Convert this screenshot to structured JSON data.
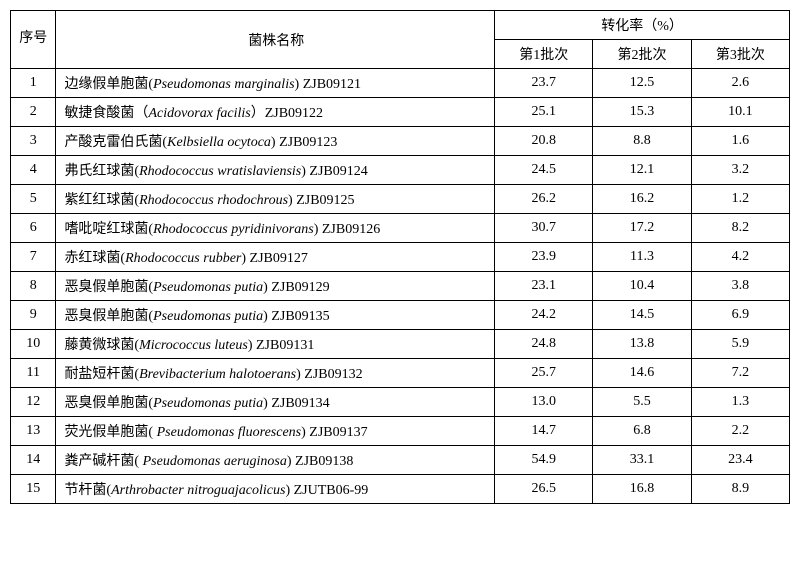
{
  "headers": {
    "seq": "序号",
    "name": "菌株名称",
    "rate": "转化率（%）",
    "batch1": "第1批次",
    "batch2": "第2批次",
    "batch3": "第3批次"
  },
  "rows": [
    {
      "seq": "1",
      "cn": "边缘假单胞菌",
      "latin": "Pseudomonas marginalis",
      "code": " ZJB09121",
      "b1": "23.7",
      "b2": "12.5",
      "b3": "2.6"
    },
    {
      "seq": "2",
      "cn": "敏捷食酸菌（",
      "latin": "Acidovorax facilis",
      "code": "）ZJB09122",
      "b1": "25.1",
      "b2": "15.3",
      "b3": "10.1",
      "paren": true
    },
    {
      "seq": "3",
      "cn": "产酸克雷伯氏菌",
      "latin": "Kelbsiella ocytoca",
      "code": " ZJB09123",
      "b1": "20.8",
      "b2": "8.8",
      "b3": "1.6"
    },
    {
      "seq": "4",
      "cn": "弗氏红球菌",
      "latin": "Rhodococcus wratislaviensis",
      "code": " ZJB09124",
      "b1": "24.5",
      "b2": "12.1",
      "b3": "3.2"
    },
    {
      "seq": "5",
      "cn": "紫红红球菌",
      "latin": "Rhodococcus rhodochrous",
      "code": " ZJB09125",
      "b1": "26.2",
      "b2": "16.2",
      "b3": "1.2"
    },
    {
      "seq": "6",
      "cn": "嗜吡啶红球菌",
      "latin": "Rhodococcus pyridinivorans",
      "code": " ZJB09126",
      "b1": "30.7",
      "b2": "17.2",
      "b3": "8.2"
    },
    {
      "seq": "7",
      "cn": "赤红球菌",
      "latin": "Rhodococcus rubber",
      "code": " ZJB09127",
      "b1": "23.9",
      "b2": "11.3",
      "b3": "4.2"
    },
    {
      "seq": "8",
      "cn": "恶臭假单胞菌",
      "latin": "Pseudomonas putia",
      "code": " ZJB09129",
      "b1": "23.1",
      "b2": "10.4",
      "b3": "3.8"
    },
    {
      "seq": "9",
      "cn": "恶臭假单胞菌",
      "latin": "Pseudomonas putia",
      "code": " ZJB09135",
      "b1": "24.2",
      "b2": "14.5",
      "b3": "6.9"
    },
    {
      "seq": "10",
      "cn": "藤黄微球菌",
      "latin": "Micrococcus luteus",
      "code": " ZJB09131",
      "b1": "24.8",
      "b2": "13.8",
      "b3": "5.9"
    },
    {
      "seq": "11",
      "cn": "耐盐短杆菌",
      "latin": "Brevibacterium halotoerans",
      "code": " ZJB09132",
      "b1": "25.7",
      "b2": "14.6",
      "b3": "7.2"
    },
    {
      "seq": "12",
      "cn": "恶臭假单胞菌",
      "latin": "Pseudomonas putia",
      "code": " ZJB09134",
      "b1": "13.0",
      "b2": "5.5",
      "b3": "1.3"
    },
    {
      "seq": "13",
      "cn": "荧光假单胞菌",
      "latin": " Pseudomonas fluorescens",
      "code": " ZJB09137",
      "b1": "14.7",
      "b2": "6.8",
      "b3": "2.2"
    },
    {
      "seq": "14",
      "cn": "粪产碱杆菌",
      "latin": " Pseudomonas aeruginosa",
      "code": " ZJB09138",
      "b1": "54.9",
      "b2": "33.1",
      "b3": "23.4"
    },
    {
      "seq": "15",
      "cn": "节杆菌",
      "latin": "Arthrobacter nitroguajacolicus",
      "code": " ZJUTB06-99",
      "b1": "26.5",
      "b2": "16.8",
      "b3": "8.9"
    }
  ]
}
